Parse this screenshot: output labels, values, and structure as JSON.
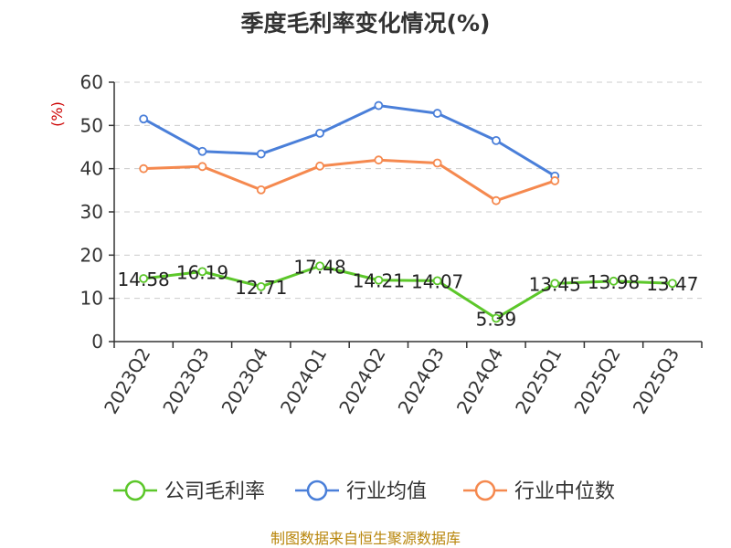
{
  "chart_data": {
    "type": "line",
    "title": "季度毛利率变化情况(%)",
    "ylabel": "(%)",
    "xlabel": "",
    "ylim": [
      0,
      60
    ],
    "yticks": [
      0,
      10,
      20,
      30,
      40,
      50,
      60
    ],
    "grid": true,
    "categories": [
      "2023Q2",
      "2023Q3",
      "2023Q4",
      "2024Q1",
      "2024Q2",
      "2024Q3",
      "2024Q4",
      "2025Q1",
      "2025Q2",
      "2025Q3"
    ],
    "series": [
      {
        "name": "公司毛利率",
        "color": "#5cc72a",
        "values": [
          14.58,
          16.19,
          12.71,
          17.48,
          14.21,
          14.07,
          5.39,
          13.45,
          13.98,
          13.47
        ],
        "labels": [
          "14.58",
          "16.19",
          "12.71",
          "17.48",
          "14.21",
          "14.07",
          "5.39",
          "13.45",
          "13.98",
          "13.47"
        ]
      },
      {
        "name": "行业均值",
        "color": "#4a7fd9",
        "values": [
          51.5,
          44.0,
          43.4,
          48.2,
          54.6,
          52.8,
          46.5,
          38.3,
          null,
          null
        ]
      },
      {
        "name": "行业中位数",
        "color": "#f5894f",
        "values": [
          40.0,
          40.5,
          35.1,
          40.6,
          42.0,
          41.3,
          32.6,
          37.2,
          null,
          null
        ]
      }
    ],
    "legend_position": "bottom"
  },
  "source": "制图数据来自恒生聚源数据库"
}
